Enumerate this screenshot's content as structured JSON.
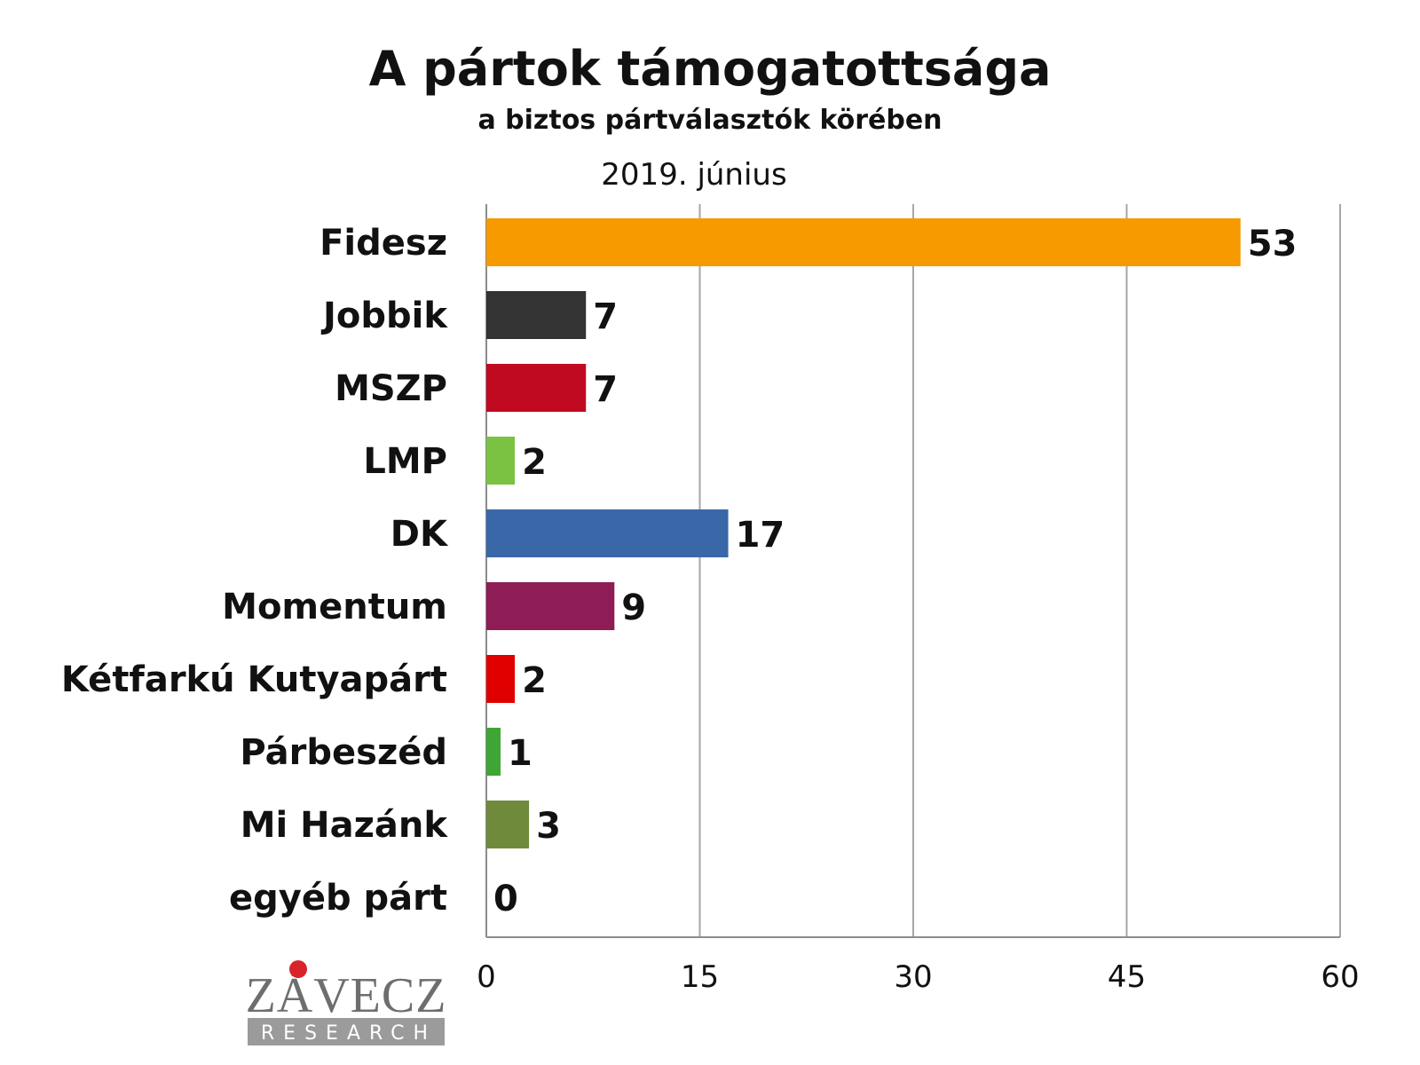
{
  "chart_data": {
    "type": "bar",
    "orientation": "horizontal",
    "title": "A pártok támogatottsága",
    "subtitle": "a biztos pártválasztók körében",
    "series_label": "2019. június",
    "categories": [
      "Fidesz",
      "Jobbik",
      "MSZP",
      "LMP",
      "DK",
      "Momentum",
      "Kétfarkú Kutyapárt",
      "Párbeszéd",
      "Mi Hazánk",
      "egyéb párt"
    ],
    "values": [
      53,
      7,
      7,
      2,
      17,
      9,
      2,
      1,
      3,
      0
    ],
    "colors": [
      "#f79a00",
      "#333333",
      "#c00a22",
      "#7cc242",
      "#3a67a8",
      "#8e1c56",
      "#e00000",
      "#3ea635",
      "#6f8a3a",
      "#888888"
    ],
    "xlim": [
      0,
      60
    ],
    "xticks": [
      0,
      15,
      30,
      45,
      60
    ],
    "grid": true,
    "xlabel": "",
    "ylabel": ""
  },
  "logo": {
    "name": "ZÁVECZ",
    "sub": "RESEARCH",
    "accent_color": "#d8232a"
  }
}
